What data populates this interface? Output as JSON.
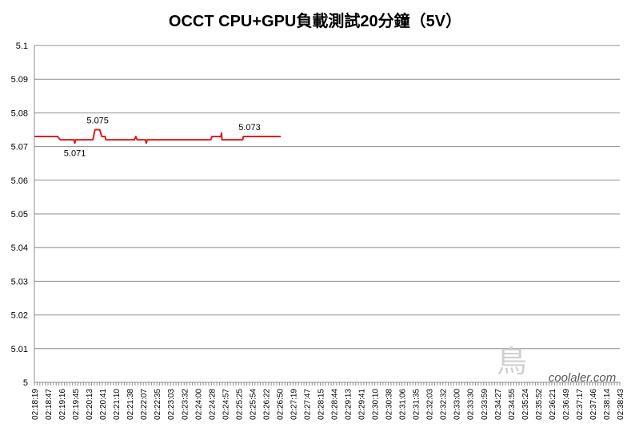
{
  "chart_data": {
    "type": "line",
    "title": "OCCT CPU+GPU負載測試20分鐘（5V）",
    "xlabel": "",
    "ylabel": "",
    "ylim": [
      5,
      5.1
    ],
    "yticks": [
      "5",
      "5.01",
      "5.02",
      "5.03",
      "5.04",
      "5.05",
      "5.06",
      "5.07",
      "5.08",
      "5.09",
      "5.1"
    ],
    "grid": true,
    "legend": "none",
    "x": [
      "02:18:19",
      "02:18:47",
      "02:19:16",
      "02:19:45",
      "02:20:13",
      "02:20:41",
      "02:21:10",
      "02:21:38",
      "02:22:07",
      "02:22:35",
      "02:23:03",
      "02:23:32",
      "02:24:00",
      "02:24:28",
      "02:24:57",
      "02:25:25",
      "02:25:54",
      "02:26:22",
      "02:26:50",
      "02:27:19",
      "02:27:47",
      "02:28:15",
      "02:28:44",
      "02:29:13",
      "02:29:41",
      "02:30:10",
      "02:30:38",
      "02:31:06",
      "02:31:35",
      "02:32:03",
      "02:32:32",
      "02:33:00",
      "02:33:30",
      "02:33:59",
      "02:34:27",
      "02:34:55",
      "02:35:24",
      "02:35:52",
      "02:36:21",
      "02:36:49",
      "02:37:17",
      "02:37:46",
      "02:38:14",
      "02:38:43"
    ],
    "series": [
      {
        "color": "#e31a1c",
        "points": [
          [
            0,
            5.073
          ],
          [
            1.7,
            5.073
          ],
          [
            1.9,
            5.072
          ],
          [
            2.9,
            5.072
          ],
          [
            2.97,
            5.071
          ],
          [
            3.03,
            5.072
          ],
          [
            4.3,
            5.072
          ],
          [
            4.45,
            5.075
          ],
          [
            4.8,
            5.075
          ],
          [
            4.95,
            5.073
          ],
          [
            5.2,
            5.073
          ],
          [
            5.25,
            5.072
          ],
          [
            7.35,
            5.072
          ],
          [
            7.45,
            5.073
          ],
          [
            7.55,
            5.072
          ],
          [
            8.15,
            5.072
          ],
          [
            8.22,
            5.071
          ],
          [
            8.28,
            5.072
          ],
          [
            12.95,
            5.072
          ],
          [
            13.05,
            5.073
          ],
          [
            13.7,
            5.073
          ],
          [
            13.75,
            5.074
          ],
          [
            13.78,
            5.072
          ],
          [
            15.3,
            5.072
          ],
          [
            15.35,
            5.073
          ],
          [
            18.1,
            5.073
          ]
        ]
      }
    ],
    "annotations": [
      {
        "text": "5.075",
        "x": 4.65,
        "y": 5.075
      },
      {
        "text": "5.071",
        "x": 2.97,
        "y": 5.071
      },
      {
        "text": "5.073",
        "x": 15.8,
        "y": 5.073
      }
    ]
  },
  "watermark": {
    "text": "coolaler.com",
    "glyph": "鳥"
  }
}
